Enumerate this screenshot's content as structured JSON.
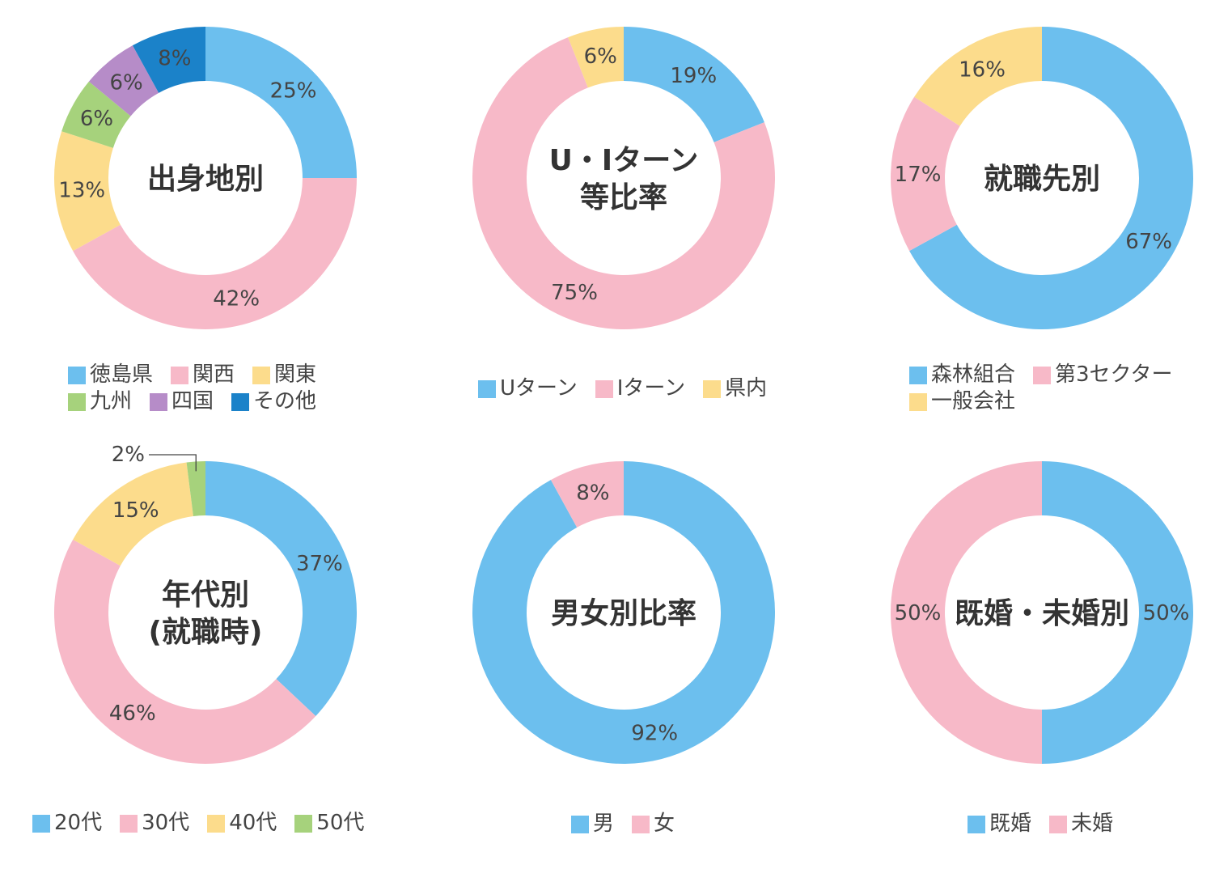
{
  "colors": {
    "blue": "#6cbfee",
    "pink": "#f7b9c8",
    "yellow": "#fcdc8c",
    "green": "#a6d27c",
    "purple": "#b68cc8",
    "darkblue": "#1b82c9"
  },
  "chart_data": [
    {
      "type": "pie",
      "title": [
        "出身地別"
      ],
      "categories": [
        "徳島県",
        "関西",
        "関東",
        "九州",
        "四国",
        "その他"
      ],
      "values": [
        25,
        42,
        13,
        6,
        6,
        8
      ],
      "labels": [
        "25%",
        "42%",
        "13%",
        "6%",
        "6%",
        "8%"
      ],
      "colors": [
        "blue",
        "pink",
        "yellow",
        "green",
        "purple",
        "darkblue"
      ]
    },
    {
      "type": "pie",
      "title": [
        "U・Iターン",
        "等比率"
      ],
      "categories": [
        "Uターン",
        "Iターン",
        "県内"
      ],
      "values": [
        19,
        75,
        6
      ],
      "labels": [
        "19%",
        "75%",
        "6%"
      ],
      "colors": [
        "blue",
        "pink",
        "yellow"
      ]
    },
    {
      "type": "pie",
      "title": [
        "就職先別"
      ],
      "categories": [
        "森林組合",
        "第3セクター",
        "一般会社"
      ],
      "values": [
        67,
        17,
        16
      ],
      "labels": [
        "67%",
        "17%",
        "16%"
      ],
      "colors": [
        "blue",
        "pink",
        "yellow"
      ]
    },
    {
      "type": "pie",
      "title": [
        "年代別",
        "(就職時)"
      ],
      "categories": [
        "20代",
        "30代",
        "40代",
        "50代"
      ],
      "values": [
        37,
        46,
        15,
        2
      ],
      "labels": [
        "37%",
        "46%",
        "15%",
        "2%"
      ],
      "colors": [
        "blue",
        "pink",
        "yellow",
        "green"
      ]
    },
    {
      "type": "pie",
      "title": [
        "男女別比率"
      ],
      "categories": [
        "男",
        "女"
      ],
      "values": [
        92,
        8
      ],
      "labels": [
        "92%",
        "8%"
      ],
      "colors": [
        "blue",
        "pink"
      ]
    },
    {
      "type": "pie",
      "title": [
        "既婚・未婚別"
      ],
      "categories": [
        "既婚",
        "未婚"
      ],
      "values": [
        50,
        50
      ],
      "labels": [
        "50%",
        "50%"
      ],
      "colors": [
        "blue",
        "pink"
      ]
    }
  ]
}
